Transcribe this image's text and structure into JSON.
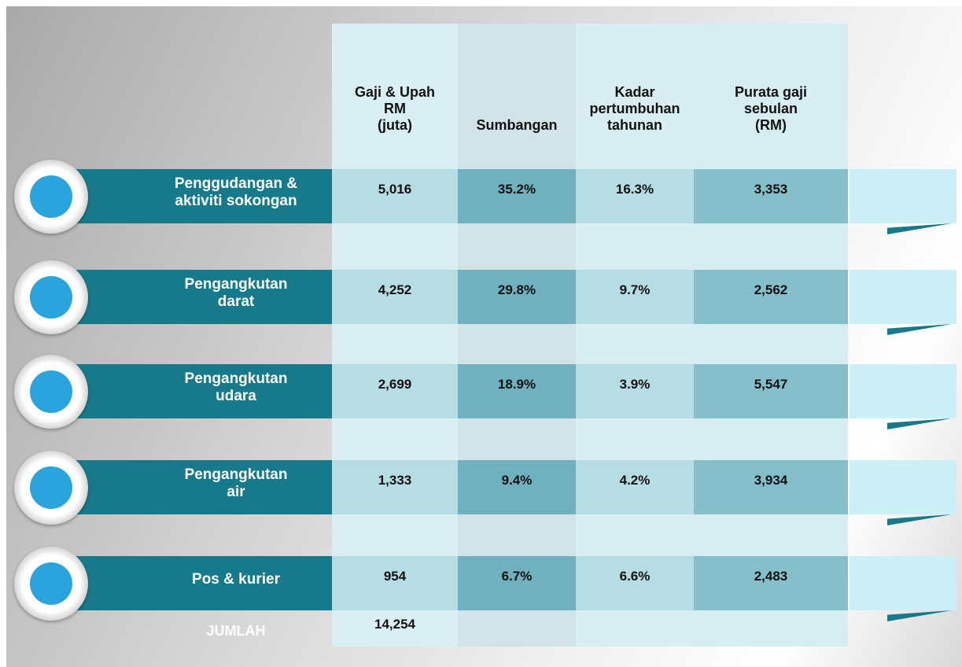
{
  "table": {
    "headers": [
      "Gaji & Upah\nRM\n(juta)",
      "Sumbangan",
      "Kadar\npertumbuhan\ntahunan",
      "Purata gaji\nsebulan\n(RM)"
    ],
    "rows": [
      {
        "label": "Penggudangan &\naktiviti sokongan",
        "cells": [
          "5,016",
          "35.2%",
          "16.3%",
          "3,353"
        ]
      },
      {
        "label": "Pengangkutan\ndarat",
        "cells": [
          "4,252",
          "29.8%",
          "9.7%",
          "2,562"
        ]
      },
      {
        "label": "Pengangkutan\nudara",
        "cells": [
          "2,699",
          "18.9%",
          "3.9%",
          "5,547"
        ]
      },
      {
        "label": "Pengangkutan\nair",
        "cells": [
          "1,333",
          "9.4%",
          "4.2%",
          "3,934"
        ]
      },
      {
        "label": "Pos & kurier",
        "cells": [
          "954",
          "6.7%",
          "6.6%",
          "2,483"
        ]
      }
    ],
    "total": {
      "label": "JUMLAH",
      "value": "14,254"
    }
  }
}
